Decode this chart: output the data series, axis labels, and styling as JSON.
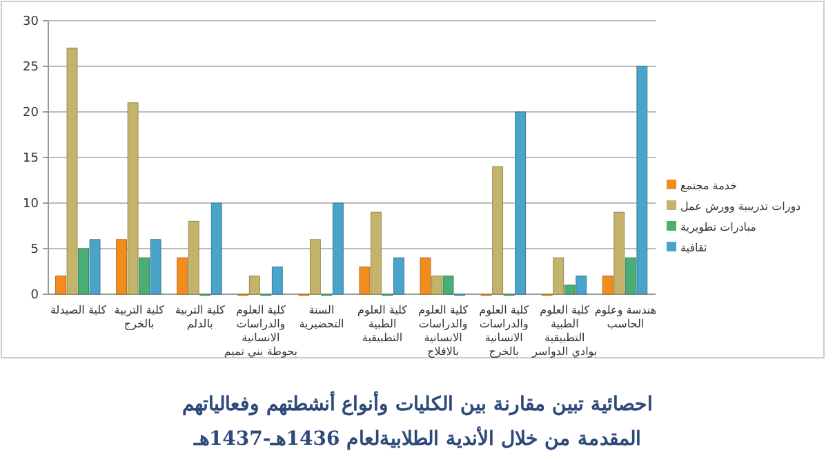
{
  "chart_data": {
    "type": "bar",
    "title": "احصائية تبين مقارنة بين الكليات وأنواع أنشطتهم وفعالياتهم",
    "subtitle": "المقدمة من خلال الأندية الطلابيةلعام 1436هـ-1437هـ",
    "categories": [
      "كلية الصيدلة",
      "كلية التربية بالخرج",
      "كلية التربية بالدلم",
      "كلية العلوم والدراسات الانسانية بحوطة بني تميم",
      "السنة التحضيرية",
      "كلية العلوم الطبية التطبيقية",
      "كلية العلوم والدراسات الانسانية بالافلاج",
      "كلية العلوم والدراسات الانسانية بالخرج",
      "كلية العلوم الطبية التطبيقية بوادي الدواسر",
      "هندسة وعلوم الحاسب"
    ],
    "series": [
      {
        "name": "خدمة مجتمع",
        "color": "#f28c1c",
        "values": [
          2,
          6,
          4,
          0,
          0,
          3,
          4,
          0,
          0,
          2
        ]
      },
      {
        "name": "دورات تدريبية وورش عمل",
        "color": "#c4b36a",
        "values": [
          27,
          21,
          8,
          2,
          6,
          9,
          2,
          14,
          4,
          9
        ]
      },
      {
        "name": "مبادرات تطويرية",
        "color": "#4bae75",
        "values": [
          5,
          4,
          0,
          0,
          0,
          0,
          2,
          0,
          1,
          4
        ]
      },
      {
        "name": "ثقافية",
        "color": "#4aa3c8",
        "values": [
          6,
          6,
          10,
          3,
          10,
          4,
          0,
          20,
          2,
          25
        ]
      }
    ],
    "ylim": [
      0,
      30
    ],
    "yticks": [
      0,
      5,
      10,
      15,
      20,
      25,
      30
    ],
    "grid": "y",
    "legend": "right"
  }
}
